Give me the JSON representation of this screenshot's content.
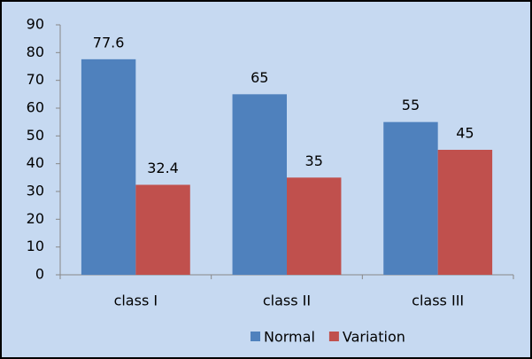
{
  "chart_data": {
    "type": "bar",
    "categories": [
      "class I",
      "class II",
      "class III"
    ],
    "series": [
      {
        "name": "Normal",
        "color": "#4f81bd",
        "values": [
          77.6,
          65,
          55
        ]
      },
      {
        "name": "Variation",
        "color": "#c0504d",
        "values": [
          32.4,
          35,
          45
        ]
      }
    ],
    "ylim": [
      0,
      90
    ],
    "yticks": [
      0,
      10,
      20,
      30,
      40,
      50,
      60,
      70,
      80,
      90
    ],
    "grid": false,
    "legend": "bottom"
  }
}
